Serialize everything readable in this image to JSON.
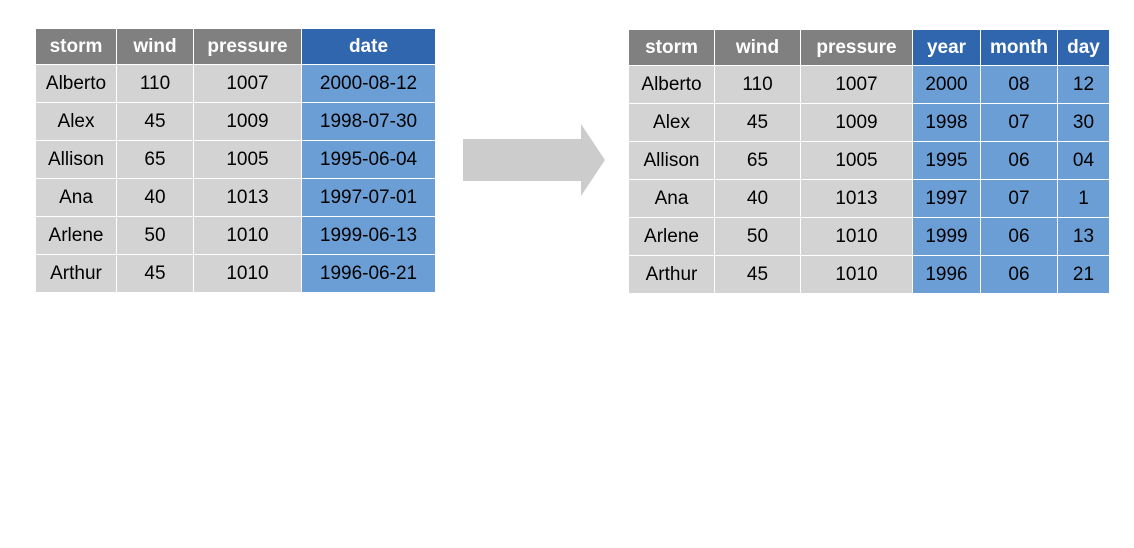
{
  "left_table": {
    "headers": [
      "storm",
      "wind",
      "pressure",
      "date"
    ],
    "rows": [
      [
        "Alberto",
        "110",
        "1007",
        "2000-08-12"
      ],
      [
        "Alex",
        "45",
        "1009",
        "1998-07-30"
      ],
      [
        "Allison",
        "65",
        "1005",
        "1995-06-04"
      ],
      [
        "Ana",
        "40",
        "1013",
        "1997-07-01"
      ],
      [
        "Arlene",
        "50",
        "1010",
        "1999-06-13"
      ],
      [
        "Arthur",
        "45",
        "1010",
        "1996-06-21"
      ]
    ]
  },
  "right_table": {
    "headers": [
      "storm",
      "wind",
      "pressure",
      "year",
      "month",
      "day"
    ],
    "rows": [
      [
        "Alberto",
        "110",
        "1007",
        "2000",
        "08",
        "12"
      ],
      [
        "Alex",
        "45",
        "1009",
        "1998",
        "07",
        "30"
      ],
      [
        "Allison",
        "65",
        "1005",
        "1995",
        "06",
        "04"
      ],
      [
        "Ana",
        "40",
        "1013",
        "1997",
        "07",
        "1"
      ],
      [
        "Arlene",
        "50",
        "1010",
        "1999",
        "06",
        "13"
      ],
      [
        "Arthur",
        "45",
        "1010",
        "1996",
        "06",
        "21"
      ]
    ]
  },
  "colors": {
    "header_gray": "#808080",
    "header_blue": "#2f66ae",
    "cell_gray": "#d3d3d3",
    "cell_blue": "#6b9ed5",
    "arrow": "#cccccc"
  },
  "icons": {
    "arrow": "arrow-right-icon"
  }
}
